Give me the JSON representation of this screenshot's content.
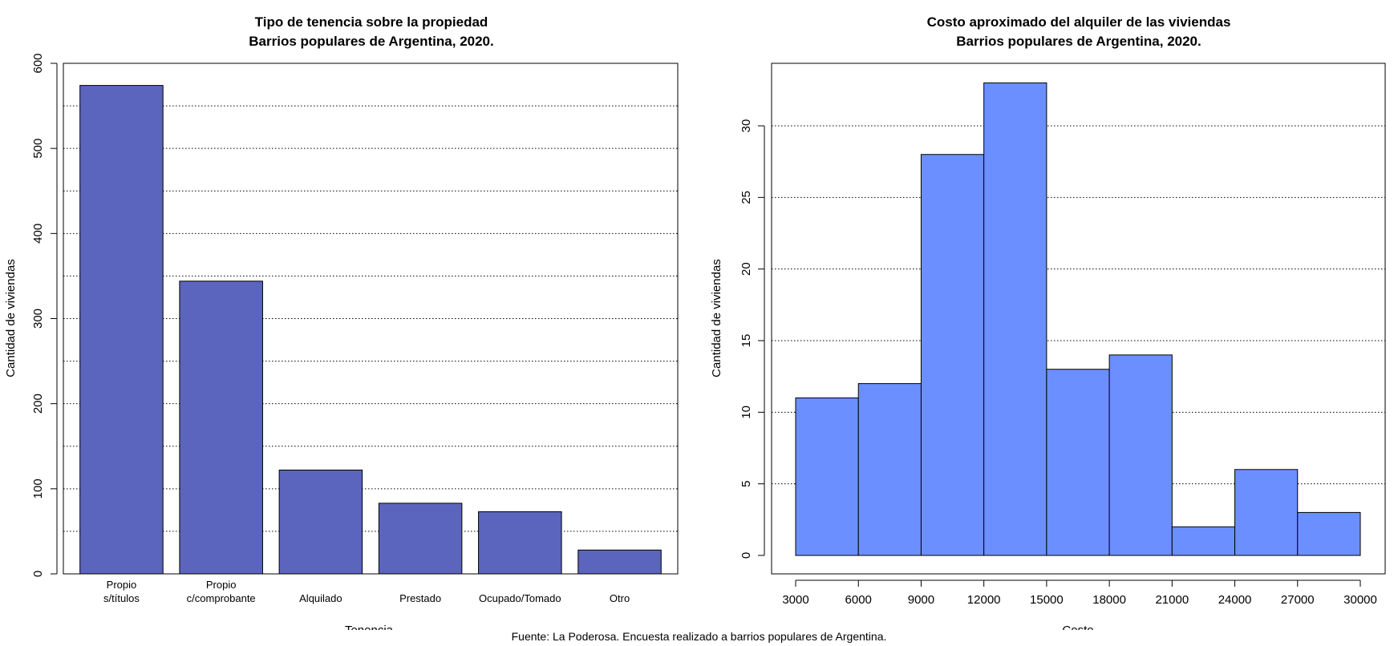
{
  "caption": "Fuente: La Poderosa. Encuesta realizado a barrios populares de Argentina.",
  "chart_data": [
    {
      "type": "bar",
      "title": "Tipo de tenencia sobre la propiedad",
      "subtitle": "Barrios populares de Argentina, 2020.",
      "xlabel": "Tenencia",
      "ylabel": "Cantidad de viviendas",
      "categories": [
        "Propio\ns/títulos",
        "Propio\nc/comprobante",
        "Alquilado",
        "Prestado",
        "Ocupado/Tomado",
        "Otro"
      ],
      "values": [
        574,
        344,
        122,
        83,
        73,
        28
      ],
      "ylim": [
        0,
        600
      ],
      "yticks": [
        0,
        100,
        200,
        300,
        400,
        500,
        600
      ],
      "gridlines_y": [
        50,
        100,
        150,
        200,
        250,
        300,
        350,
        400,
        450,
        500,
        550
      ],
      "grid": "horizontal dotted",
      "bar_color": "#5B65BE"
    },
    {
      "type": "histogram",
      "title": "Costo aproximado del alquiler de las viviendas",
      "subtitle": "Barrios populares de Argentina, 2020.",
      "xlabel": "Costo",
      "ylabel": "Cantidad de viviendas",
      "bin_edges": [
        3000,
        6000,
        9000,
        12000,
        15000,
        18000,
        21000,
        24000,
        27000,
        30000
      ],
      "counts": [
        11,
        12,
        28,
        33,
        13,
        14,
        2,
        6,
        3
      ],
      "xticks": [
        3000,
        6000,
        9000,
        12000,
        15000,
        18000,
        21000,
        24000,
        27000,
        30000
      ],
      "yticks": [
        0,
        5,
        10,
        15,
        20,
        25,
        30
      ],
      "gridlines_y": [
        5,
        10,
        15,
        20,
        25,
        30
      ],
      "ylim": [
        0,
        33
      ],
      "grid": "horizontal dotted",
      "bar_color": "#6B8FFF"
    }
  ]
}
